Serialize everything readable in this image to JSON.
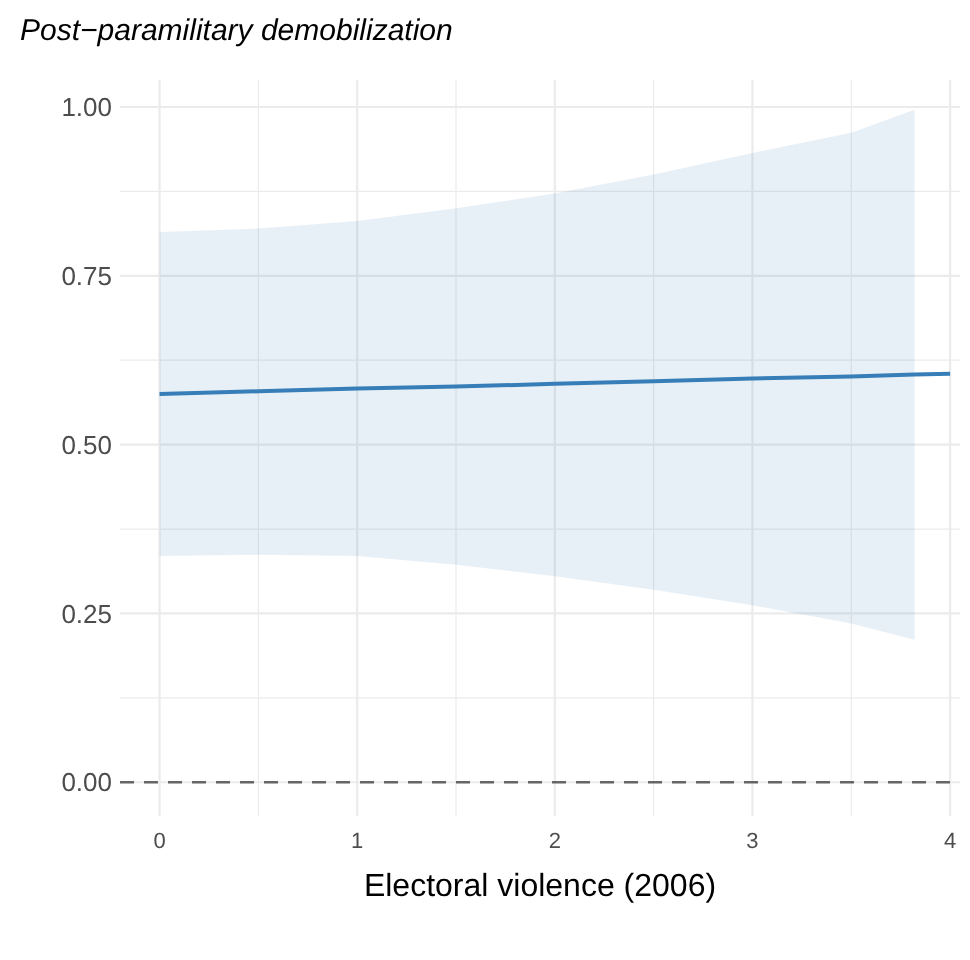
{
  "chart_data": {
    "type": "line",
    "title": "Post−paramilitary demobilization",
    "xlabel": "Electoral violence (2006)",
    "series": [
      {
        "color": "#377eb8",
        "x": [
          0,
          0.5,
          1,
          1.5,
          2,
          2.5,
          3,
          3.5,
          3.82,
          4
        ],
        "values": [
          0.575,
          0.579,
          0.583,
          0.586,
          0.59,
          0.594,
          0.598,
          0.601,
          0.604,
          0.605
        ],
        "lower": [
          0.335,
          0.337,
          0.335,
          0.322,
          0.305,
          0.285,
          0.262,
          0.235,
          0.211,
          null
        ],
        "upper": [
          0.815,
          0.82,
          0.831,
          0.85,
          0.872,
          0.9,
          0.932,
          0.962,
          0.996,
          null
        ]
      }
    ],
    "xlim": [
      -0.2,
      4.05
    ],
    "ylim": [
      -0.05,
      1.04
    ],
    "xticks": [
      0,
      {
        "value": 0.5,
        "label": null
      },
      1,
      {
        "value": 1.5,
        "label": null
      },
      2,
      {
        "value": 2.5,
        "label": null
      },
      3,
      {
        "value": 3.5,
        "label": null
      },
      4
    ],
    "yticks": [
      {
        "value": 0,
        "label": "0.00"
      },
      {
        "value": 0.125,
        "label": null
      },
      {
        "value": 0.25,
        "label": "0.25"
      },
      {
        "value": 0.375,
        "label": null
      },
      {
        "value": 0.5,
        "label": "0.50"
      },
      {
        "value": 0.625,
        "label": null
      },
      {
        "value": 0.75,
        "label": "0.75"
      },
      {
        "value": 0.875,
        "label": null
      },
      {
        "value": 1,
        "label": "1.00"
      }
    ],
    "grid": true,
    "ref_lines": [
      {
        "axis": "y",
        "value": 0,
        "color": "#666666",
        "line_style": "dashed"
      }
    ]
  }
}
